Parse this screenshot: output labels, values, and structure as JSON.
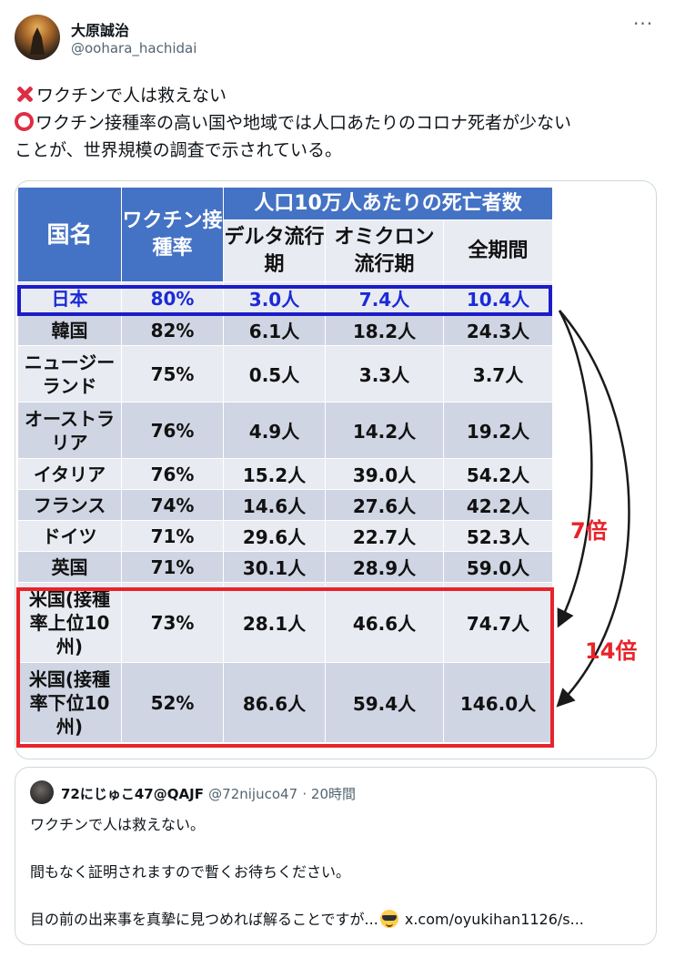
{
  "author": {
    "name": "大原誠治",
    "handle": "@oohara_hachidai"
  },
  "tweet": {
    "line1": "ワクチンで人は救えない",
    "line2": "ワクチン接種率の高い国や地域では人口あたりのコロナ死者が少ない",
    "line3": "ことが、世界規模の調査で示されている。",
    "marks": {
      "line1": "cross-mark-icon",
      "line2": "hollow-circle-icon",
      "color": "#dd2e44"
    }
  },
  "table": {
    "header": {
      "country": "国名",
      "vaccine_rate": "ワクチン接種率",
      "deaths_group": "人口10万人あたりの死亡者数",
      "delta": "デルタ流行期",
      "omicron": "オミクロン流行期",
      "total": "全期間"
    },
    "rows": [
      {
        "name": "日本",
        "rate": "80%",
        "delta": "3.0人",
        "omicron": "7.4人",
        "total": "10.4人"
      },
      {
        "name": "韓国",
        "rate": "82%",
        "delta": "6.1人",
        "omicron": "18.2人",
        "total": "24.3人"
      },
      {
        "name": "ニュージーランド",
        "rate": "75%",
        "delta": "0.5人",
        "omicron": "3.3人",
        "total": "3.7人"
      },
      {
        "name": "オーストラリア",
        "rate": "76%",
        "delta": "4.9人",
        "omicron": "14.2人",
        "total": "19.2人"
      },
      {
        "name": "イタリア",
        "rate": "76%",
        "delta": "15.2人",
        "omicron": "39.0人",
        "total": "54.2人"
      },
      {
        "name": "フランス",
        "rate": "74%",
        "delta": "14.6人",
        "omicron": "27.6人",
        "total": "42.2人"
      },
      {
        "name": "ドイツ",
        "rate": "71%",
        "delta": "29.6人",
        "omicron": "22.7人",
        "total": "52.3人"
      },
      {
        "name": "英国",
        "rate": "71%",
        "delta": "30.1人",
        "omicron": "28.9人",
        "total": "59.0人"
      },
      {
        "name": "米国(接種率上位10州)",
        "rate": "73%",
        "delta": "28.1人",
        "omicron": "46.6人",
        "total": "74.7人"
      },
      {
        "name": "米国(接種率下位10州)",
        "rate": "52%",
        "delta": "86.6人",
        "omicron": "59.4人",
        "total": "146.0人"
      }
    ],
    "annotations": {
      "ratio_upper": "7倍",
      "ratio_lower": "14倍"
    },
    "colors": {
      "header": "#4472c4",
      "row_dark": "#cfd5e3",
      "row_light": "#e9ebf2",
      "highlight_blue": "#1c1cc8",
      "highlight_red": "#e8232a"
    }
  },
  "quote": {
    "name": "72にじゅこ47@QAJF",
    "handle": "@72nijuco47",
    "time": "· 20時間",
    "line1": "ワクチンで人は救えない。",
    "line2": "間もなく証明されますので暫くお待ちください。",
    "line3": "目の前の出来事を真摯に見つめれば解ることですが...",
    "link": "x.com/oyukihan1126/s...",
    "emoji": "smiling-face-with-sunglasses-icon"
  }
}
